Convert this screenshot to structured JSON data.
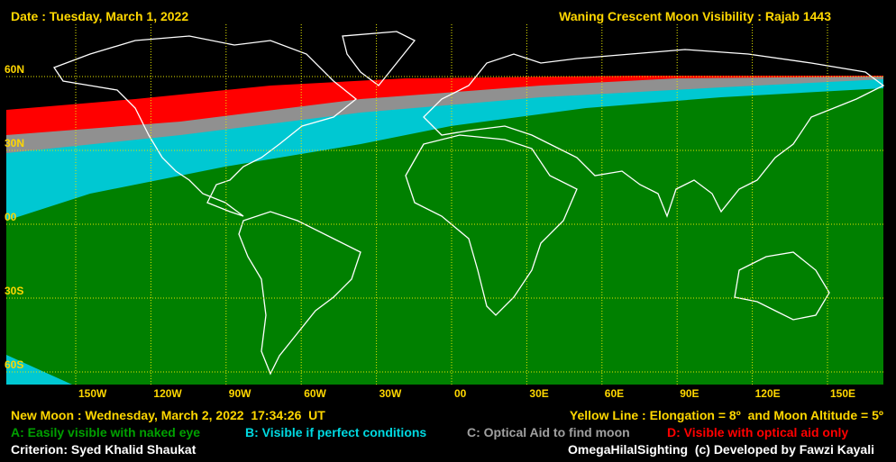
{
  "header": {
    "date": "Date : Tuesday, March 1, 2022",
    "title": "Waning Crescent Moon Visibility : Rajab 1443"
  },
  "lat_labels": [
    "60N",
    "30N",
    "00",
    "30S",
    "60S"
  ],
  "lon_labels": [
    "150W",
    "120W",
    "90W",
    "60W",
    "30W",
    "00",
    "30E",
    "60E",
    "90E",
    "120E",
    "150E"
  ],
  "legend": [
    "A: Easily visible with naked eye",
    "B: Visible if perfect conditions",
    "C: Optical Aid to find moon",
    "D: Visible with optical aid only"
  ],
  "footer": {
    "new_moon": "New Moon : Wednesday, March 2, 2022  17:34:26  UT",
    "yellow_line": "Yellow Line : Elongation = 8º  and Moon Altitude = 5º",
    "criterion": "Criterion: Syed Khalid Shaukat",
    "credit": "OmegaHilalSighting  (c) Developed by Fawzi Kayali"
  }
}
